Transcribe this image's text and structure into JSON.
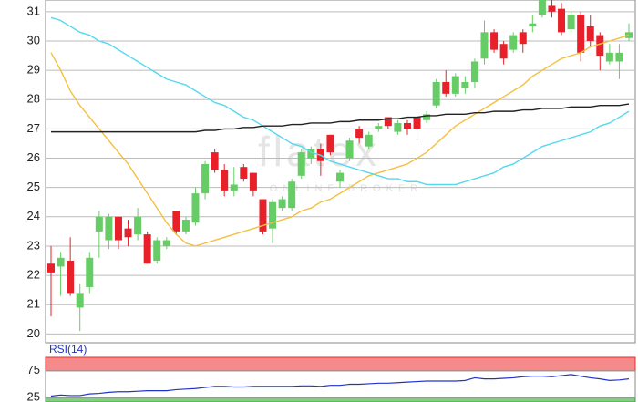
{
  "chart_data": {
    "type": "candlestick",
    "watermark": "flatex",
    "watermark_sub": "ONLINE BROKER",
    "candles": [
      [
        22.4,
        23.0,
        20.6,
        22.1
      ],
      [
        22.3,
        22.8,
        21.3,
        22.6
      ],
      [
        22.5,
        23.3,
        21.3,
        21.4
      ],
      [
        20.9,
        21.7,
        20.1,
        21.4
      ],
      [
        21.6,
        22.8,
        21.4,
        22.6
      ],
      [
        23.5,
        24.2,
        22.6,
        24.0
      ],
      [
        23.2,
        24.1,
        22.9,
        24.0
      ],
      [
        24.0,
        24.0,
        22.9,
        23.2
      ],
      [
        23.6,
        23.9,
        23.0,
        23.3
      ],
      [
        23.4,
        24.3,
        23.2,
        24.0
      ],
      [
        23.4,
        23.5,
        22.4,
        22.4
      ],
      [
        22.5,
        23.3,
        22.4,
        23.2
      ],
      [
        23.0,
        23.3,
        22.9,
        23.2
      ],
      [
        24.2,
        24.2,
        23.4,
        23.5
      ],
      [
        23.5,
        24.0,
        23.4,
        23.9
      ],
      [
        23.8,
        25.0,
        23.7,
        24.8
      ],
      [
        24.8,
        25.9,
        24.6,
        25.8
      ],
      [
        26.2,
        26.3,
        25.5,
        25.6
      ],
      [
        25.6,
        25.8,
        24.7,
        24.9
      ],
      [
        24.9,
        25.7,
        24.7,
        25.1
      ],
      [
        25.7,
        25.8,
        25.2,
        25.3
      ],
      [
        25.5,
        25.5,
        24.7,
        24.9
      ],
      [
        24.6,
        24.6,
        23.4,
        23.5
      ],
      [
        23.6,
        24.6,
        23.1,
        24.5
      ],
      [
        24.3,
        24.7,
        24.2,
        24.6
      ],
      [
        24.3,
        25.3,
        24.2,
        25.2
      ],
      [
        25.4,
        26.3,
        25.3,
        26.2
      ],
      [
        26.0,
        26.4,
        25.8,
        26.3
      ],
      [
        26.3,
        26.5,
        25.4,
        25.9
      ],
      [
        26.8,
        26.8,
        26.1,
        26.2
      ],
      [
        25.2,
        25.6,
        25.0,
        25.5
      ],
      [
        26.0,
        26.7,
        25.9,
        26.6
      ],
      [
        27.0,
        27.1,
        26.5,
        26.7
      ],
      [
        26.4,
        26.9,
        26.3,
        26.8
      ],
      [
        27.0,
        27.2,
        26.9,
        27.1
      ],
      [
        27.4,
        27.4,
        27.0,
        27.1
      ],
      [
        26.9,
        27.3,
        26.8,
        27.2
      ],
      [
        27.2,
        27.3,
        26.8,
        27.0
      ],
      [
        27.4,
        27.5,
        26.6,
        27.0
      ],
      [
        27.3,
        27.6,
        27.2,
        27.5
      ],
      [
        27.8,
        28.7,
        27.7,
        28.6
      ],
      [
        28.6,
        29.0,
        28.1,
        28.2
      ],
      [
        28.2,
        28.9,
        28.1,
        28.8
      ],
      [
        28.4,
        28.8,
        28.2,
        28.6
      ],
      [
        28.6,
        29.4,
        28.4,
        29.3
      ],
      [
        29.4,
        30.7,
        29.2,
        30.3
      ],
      [
        30.3,
        30.4,
        29.6,
        29.7
      ],
      [
        29.9,
        30.0,
        29.2,
        29.4
      ],
      [
        29.7,
        30.3,
        29.6,
        30.2
      ],
      [
        30.3,
        30.4,
        29.6,
        29.9
      ],
      [
        30.5,
        30.9,
        30.3,
        30.6
      ],
      [
        30.9,
        31.6,
        30.8,
        31.5
      ],
      [
        31.2,
        31.4,
        30.8,
        31.0
      ],
      [
        31.1,
        31.3,
        30.2,
        30.3
      ],
      [
        30.4,
        31.0,
        30.3,
        30.9
      ],
      [
        30.9,
        31.0,
        29.3,
        29.6
      ],
      [
        30.5,
        30.9,
        29.8,
        30.0
      ],
      [
        30.2,
        30.3,
        29.0,
        29.5
      ],
      [
        29.3,
        29.9,
        29.2,
        29.6
      ],
      [
        29.3,
        29.9,
        28.7,
        29.6
      ],
      [
        30.1,
        30.6,
        30.0,
        30.3
      ]
    ],
    "up_color": "#66cc66",
    "down_color": "#e8202a",
    "lines": [
      {
        "color": "#f5c040",
        "values": [
          29.6,
          29.0,
          28.3,
          27.8,
          27.4,
          27.0,
          26.6,
          26.2,
          25.8,
          25.3,
          24.8,
          24.3,
          23.8,
          23.4,
          23.1,
          23.0,
          23.1,
          23.2,
          23.3,
          23.4,
          23.5,
          23.6,
          23.7,
          23.8,
          23.9,
          24.0,
          24.2,
          24.3,
          24.5,
          24.6,
          24.8,
          25.0,
          25.2,
          25.4,
          25.5,
          25.6,
          25.7,
          25.8,
          26.0,
          26.2,
          26.5,
          26.8,
          27.1,
          27.3,
          27.5,
          27.7,
          27.9,
          28.1,
          28.3,
          28.5,
          28.8,
          29.0,
          29.2,
          29.4,
          29.5,
          29.6,
          29.8,
          29.9,
          30.0,
          30.1,
          30.2
        ]
      },
      {
        "color": "#55d8f0",
        "values": [
          30.8,
          30.7,
          30.5,
          30.3,
          30.2,
          30.0,
          29.9,
          29.7,
          29.5,
          29.3,
          29.1,
          28.9,
          28.7,
          28.6,
          28.5,
          28.3,
          28.1,
          27.9,
          27.8,
          27.6,
          27.4,
          27.3,
          27.1,
          26.9,
          26.7,
          26.5,
          26.4,
          26.2,
          26.1,
          25.9,
          25.8,
          25.7,
          25.6,
          25.5,
          25.4,
          25.3,
          25.3,
          25.2,
          25.2,
          25.1,
          25.1,
          25.1,
          25.1,
          25.2,
          25.3,
          25.4,
          25.5,
          25.7,
          25.8,
          26.0,
          26.2,
          26.4,
          26.5,
          26.6,
          26.7,
          26.8,
          26.9,
          27.1,
          27.2,
          27.4,
          27.6
        ]
      },
      {
        "color": "#222222",
        "values": [
          26.9,
          26.9,
          26.9,
          26.9,
          26.9,
          26.9,
          26.9,
          26.9,
          26.9,
          26.9,
          26.9,
          26.9,
          26.9,
          26.9,
          26.9,
          26.9,
          26.95,
          26.95,
          27.0,
          27.0,
          27.05,
          27.05,
          27.1,
          27.1,
          27.1,
          27.15,
          27.15,
          27.2,
          27.2,
          27.2,
          27.25,
          27.25,
          27.3,
          27.3,
          27.3,
          27.35,
          27.35,
          27.4,
          27.4,
          27.45,
          27.45,
          27.5,
          27.5,
          27.5,
          27.55,
          27.55,
          27.6,
          27.6,
          27.6,
          27.65,
          27.65,
          27.7,
          27.7,
          27.7,
          27.75,
          27.75,
          27.75,
          27.8,
          27.8,
          27.8,
          27.85
        ]
      }
    ],
    "ylim": [
      19.7,
      31.4
    ],
    "yticks": [
      20,
      21,
      22,
      23,
      24,
      25,
      26,
      27,
      28,
      29,
      30,
      31
    ],
    "grid": true,
    "rsi": {
      "label": "RSI(14)",
      "color": "#2233cc",
      "ylim": [
        17,
        100
      ],
      "yticks": [
        25,
        75
      ],
      "values": [
        28,
        30,
        29,
        29,
        32,
        33,
        35,
        36,
        36,
        37,
        38,
        38,
        38,
        40,
        41,
        42,
        44,
        46,
        46,
        45,
        45,
        46,
        46,
        46,
        46,
        46,
        47,
        47,
        46,
        48,
        48,
        50,
        50,
        51,
        52,
        52,
        53,
        54,
        55,
        56,
        56,
        56,
        56,
        57,
        62,
        60,
        60,
        61,
        62,
        64,
        65,
        65,
        64,
        66,
        68,
        65,
        62,
        60,
        57,
        58,
        60
      ]
    }
  }
}
